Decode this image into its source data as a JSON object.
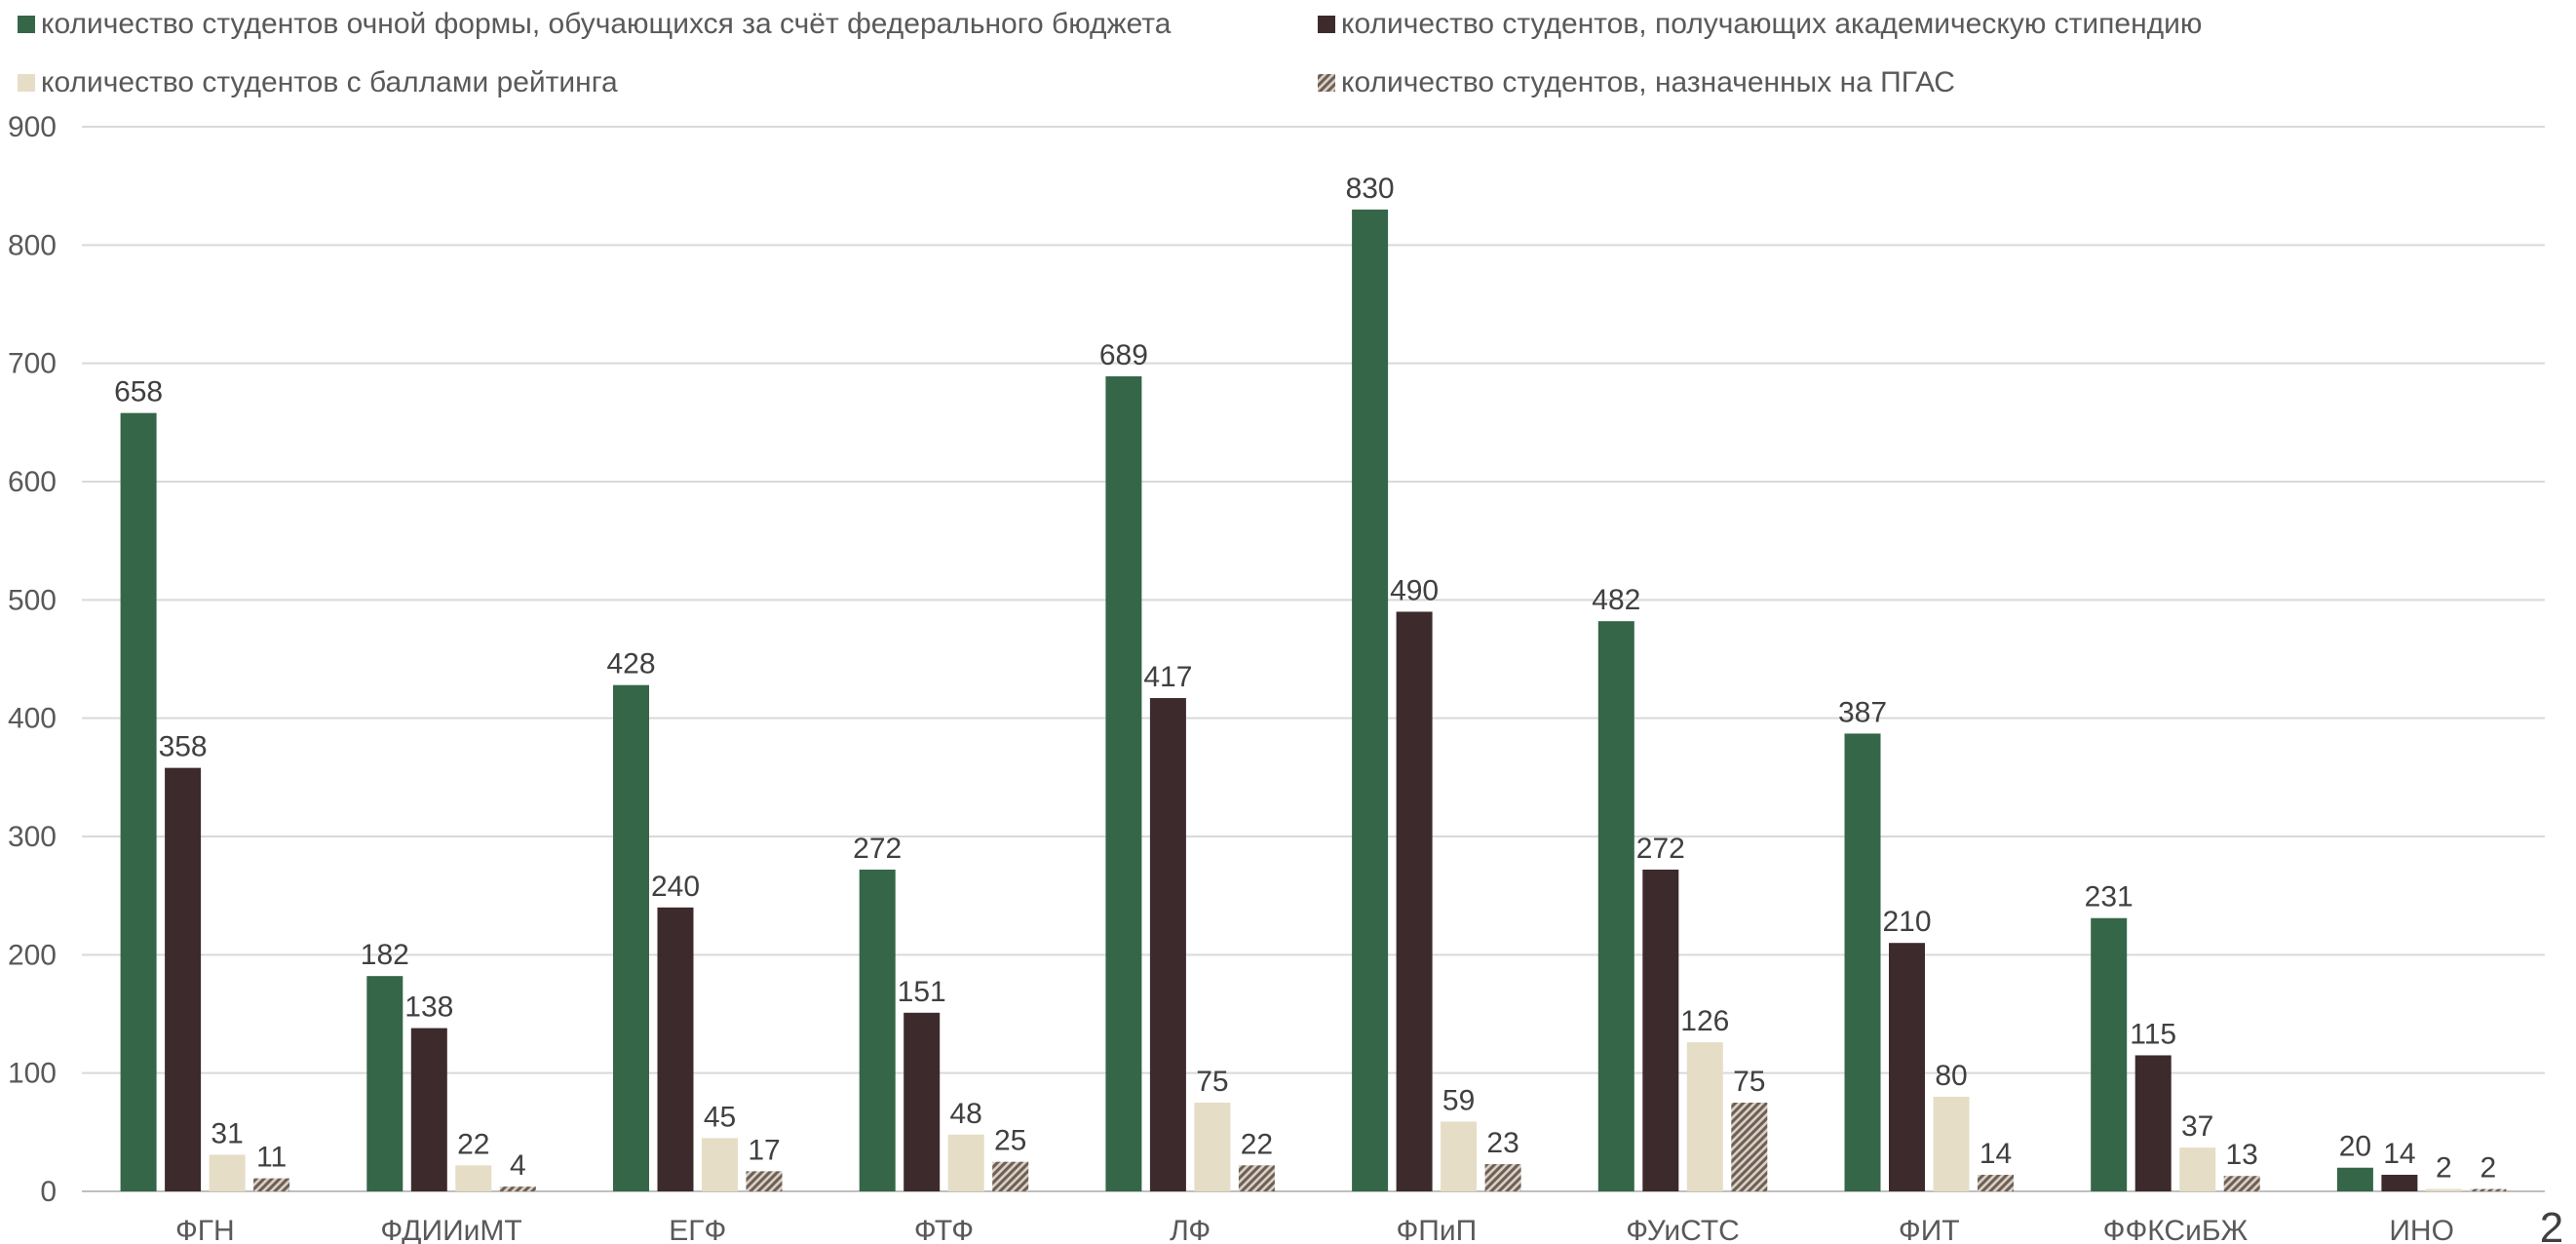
{
  "chart_data": {
    "type": "bar",
    "categories": [
      "ФГН",
      "ФДИИиМТ",
      "ЕГФ",
      "ФТФ",
      "ЛФ",
      "ФПиП",
      "ФУиСТС",
      "ФИТ",
      "ФФКСиБЖ",
      "ИНО"
    ],
    "series": [
      {
        "name": "количество студентов  очной формы, обучающихся за счёт федерального бюджета",
        "color": "#356648",
        "values": [
          658,
          182,
          428,
          272,
          689,
          830,
          482,
          387,
          231,
          20
        ]
      },
      {
        "name": "количество студентов, получающих академическую стипендию",
        "color": "#3d2a2c",
        "values": [
          358,
          138,
          240,
          151,
          417,
          490,
          272,
          210,
          115,
          14
        ]
      },
      {
        "name": "количество студентов с баллами рейтинга",
        "color": "#e6ddc6",
        "values": [
          31,
          22,
          45,
          48,
          75,
          59,
          126,
          80,
          37,
          2
        ]
      },
      {
        "name": "количество студентов, назначенных на ПГАС",
        "color": "#8a7a6e",
        "pattern": "diagonal-hatch",
        "values": [
          11,
          4,
          17,
          25,
          22,
          23,
          75,
          14,
          13,
          2
        ]
      }
    ],
    "title": "",
    "xlabel": "",
    "ylabel": "",
    "ylim": [
      0,
      900
    ],
    "yticks": [
      "0",
      "100",
      "200",
      "300",
      "400",
      "500",
      "600",
      "700",
      "800",
      "900"
    ],
    "grid": true,
    "legend_position": "top"
  },
  "page_number": "2"
}
